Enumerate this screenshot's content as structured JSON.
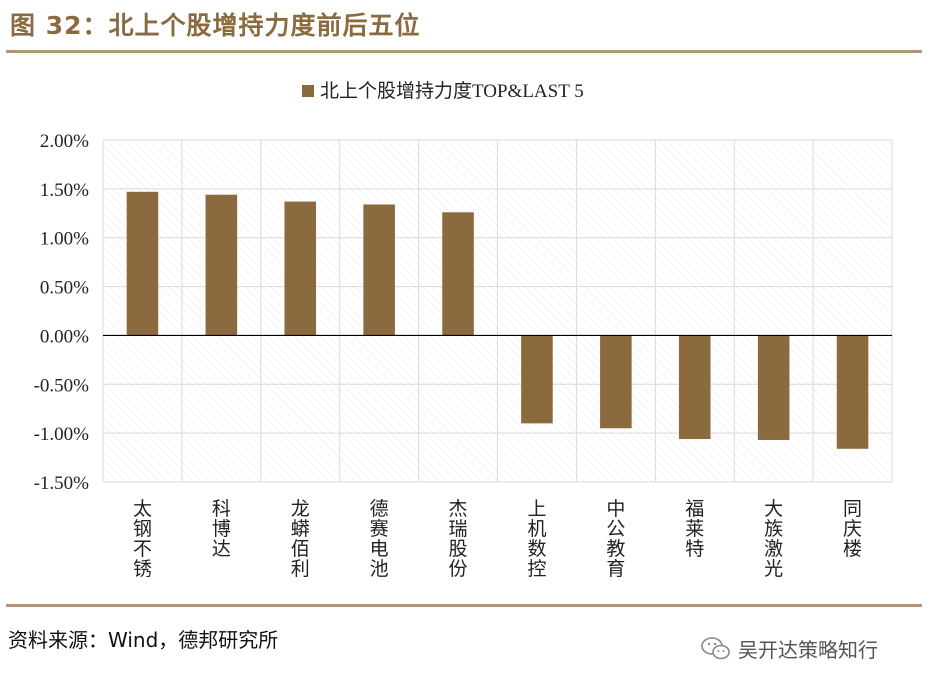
{
  "figure": {
    "title": "图 32：北上个股增持力度前后五位",
    "source": "资料来源：Wind，德邦研究所",
    "watermark": "吴开达策略知行"
  },
  "colors": {
    "accent": "#8b6a3e",
    "bar": "#8b6a3e",
    "rule": "#b5957a",
    "grid": "#d9d9d9"
  },
  "chart_data": {
    "type": "bar",
    "legend": "北上个股增持力度TOP&LAST 5",
    "legend_position": "top",
    "grid": true,
    "ylim": [
      -0.015,
      0.02
    ],
    "yticks": [
      "2.00%",
      "1.50%",
      "1.00%",
      "0.50%",
      "0.00%",
      "-0.50%",
      "-1.00%",
      "-1.50%"
    ],
    "ytick_values": [
      0.02,
      0.015,
      0.01,
      0.005,
      0,
      -0.005,
      -0.01,
      -0.015
    ],
    "categories": [
      "太钢不锈",
      "科博达",
      "龙蟒佰利",
      "德赛电池",
      "杰瑞股份",
      "上机数控",
      "中公教育",
      "福莱特",
      "大族激光",
      "同庆楼"
    ],
    "values": [
      0.0147,
      0.0144,
      0.0137,
      0.0134,
      0.0126,
      -0.009,
      -0.0095,
      -0.0106,
      -0.0107,
      -0.0116
    ]
  }
}
